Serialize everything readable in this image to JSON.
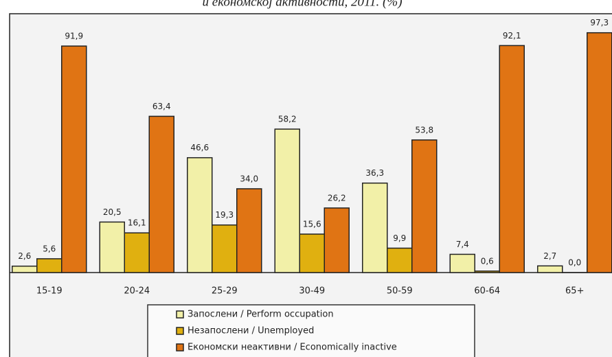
{
  "chart_data": {
    "type": "bar",
    "title": "и економској активности, 2011. (%)",
    "categories": [
      "15-19",
      "20-24",
      "25-29",
      "30-49",
      "50-59",
      "60-64",
      "65+"
    ],
    "series": [
      {
        "name": "Запослени / Perform occupation",
        "color": "#f2f0a8",
        "values": [
          2.6,
          20.5,
          46.6,
          58.2,
          36.3,
          7.4,
          2.7
        ],
        "value_labels": [
          "2,6",
          "20,5",
          "46,6",
          "58,2",
          "36,3",
          "7,4",
          "2,7"
        ]
      },
      {
        "name": "Незапослени / Unemployed",
        "color": "#e0b010",
        "values": [
          5.6,
          16.1,
          19.3,
          15.6,
          9.9,
          0.6,
          0.0
        ],
        "value_labels": [
          "5,6",
          "16,1",
          "19,3",
          "15,6",
          "9,9",
          "0,6",
          "0,0"
        ]
      },
      {
        "name": "Економски неактивни / Economically inactive",
        "color": "#e07414",
        "values": [
          91.9,
          63.4,
          34.0,
          26.2,
          53.8,
          92.1,
          97.3
        ],
        "value_labels": [
          "91,9",
          "63,4",
          "34,0",
          "26,2",
          "53,8",
          "92,1",
          "97,3"
        ]
      }
    ],
    "ylim": [
      0,
      100
    ]
  }
}
